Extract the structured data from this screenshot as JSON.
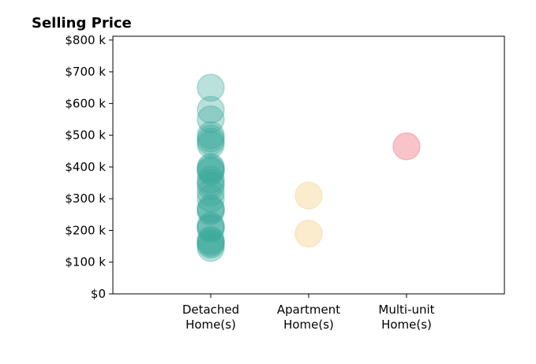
{
  "chart_data": {
    "type": "scatter",
    "title": "Selling Price",
    "xlabel": "",
    "ylabel": "",
    "categories": [
      [
        "Detached",
        "Home(s)"
      ],
      [
        "Apartment",
        "Home(s)"
      ],
      [
        "Multi-unit",
        "Home(s)"
      ]
    ],
    "ylim": [
      0,
      812
    ],
    "yticks": [
      0,
      100,
      200,
      300,
      400,
      500,
      600,
      700,
      800
    ],
    "ytick_labels": [
      "$0",
      "$100 k",
      "$200 k",
      "$300 k",
      "$400 k",
      "$500 k",
      "$600 k",
      "$700 k",
      "$800 k"
    ],
    "grid": false,
    "series": [
      {
        "category": 0,
        "color": "#3aa99a",
        "opacity": 0.35,
        "values": [
          650,
          580,
          550,
          500,
          490,
          480,
          470,
          400,
          395,
          390,
          385,
          360,
          350,
          340,
          320,
          300,
          270,
          265,
          260,
          215,
          210,
          205,
          170,
          165,
          160,
          155,
          145
        ]
      },
      {
        "category": 1,
        "color": "#f5d99c",
        "opacity": 0.5,
        "values": [
          310,
          190
        ]
      },
      {
        "category": 2,
        "color": "#f28a94",
        "opacity": 0.5,
        "values": [
          465
        ]
      }
    ]
  }
}
